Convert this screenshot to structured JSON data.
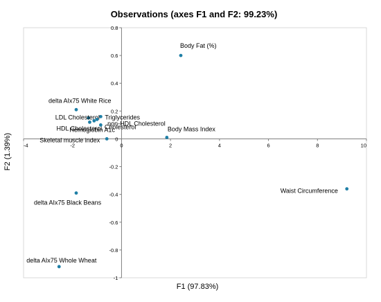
{
  "chart_data": {
    "type": "scatter",
    "title": "Observations (axes F1 and F2: 99.23%)",
    "xlabel": "F1 (97.83%)",
    "ylabel": "F2 (1.39%)",
    "xlim": [
      -4,
      10
    ],
    "ylim": [
      -1,
      0.8
    ],
    "xticks": [
      "-4",
      "-2",
      "0",
      "2",
      "4",
      "6",
      "8",
      "10"
    ],
    "yticks": [
      "-1",
      "-0.8",
      "-0.6",
      "-0.4",
      "-0.2",
      "0",
      "0.2",
      "0.4",
      "0.6",
      "0.8"
    ],
    "grid": false,
    "point_color": "#1f7fa6",
    "points": [
      {
        "label": "Body Fat (%)",
        "x": 2.42,
        "y": 0.6
      },
      {
        "label": "delta AIx75 White Rice",
        "x": -1.85,
        "y": 0.21
      },
      {
        "label": "Triglycerides",
        "x": -0.85,
        "y": 0.16
      },
      {
        "label": "LDL Cholesterol",
        "x": -1.35,
        "y": 0.15
      },
      {
        "label": "non-HDL Cholesterol",
        "x": -1.0,
        "y": 0.14
      },
      {
        "label": "HDL Cholesterol",
        "x": -1.3,
        "y": 0.12
      },
      {
        "label": "Hemoglobin A1c",
        "x": -0.85,
        "y": 0.1
      },
      {
        "label": "Cholesterol",
        "x": -1.12,
        "y": 0.13
      },
      {
        "label": "Body Mass Index",
        "x": 1.85,
        "y": 0.01
      },
      {
        "label": "Skeletal muscle index",
        "x": -0.6,
        "y": 0.0
      },
      {
        "label": "Waist Circumference",
        "x": 9.2,
        "y": -0.36
      },
      {
        "label": "delta AIx75 Black Beans",
        "x": -1.85,
        "y": -0.39
      },
      {
        "label": "delta AIx75 Whole Wheat",
        "x": -2.55,
        "y": -0.92
      }
    ]
  }
}
